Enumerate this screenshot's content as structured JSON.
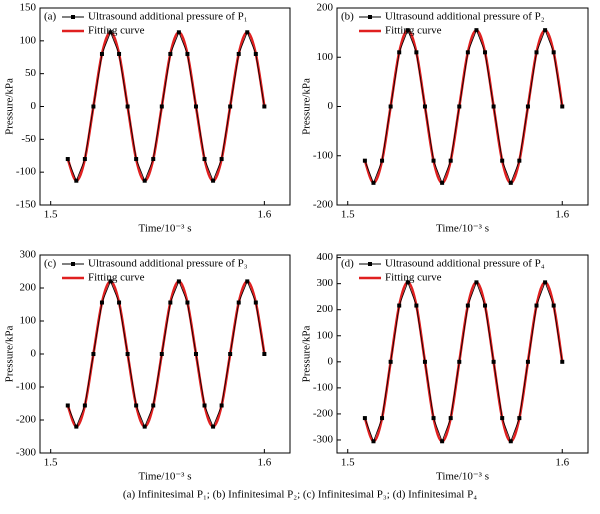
{
  "chart_data": [
    {
      "type": "line",
      "label": "(a)",
      "xlabel": "Time/10⁻³ s",
      "ylabel": "Pressure/kPa",
      "legend": "upper left",
      "x": [
        1.508,
        1.512,
        1.516,
        1.52,
        1.524,
        1.528,
        1.532,
        1.536,
        1.54,
        1.544,
        1.548,
        1.552,
        1.556,
        1.56,
        1.564,
        1.568,
        1.572,
        1.576,
        1.58,
        1.584,
        1.588,
        1.592,
        1.596,
        1.6
      ],
      "series": [
        {
          "name": "Ultrasound additional pressure of P₁",
          "color": "#000000",
          "values": [
            -80,
            -113,
            -80,
            0,
            80,
            113,
            80,
            0,
            -80,
            -113,
            -80,
            0,
            80,
            113,
            80,
            0,
            -80,
            -113,
            -80,
            0,
            80,
            113,
            80,
            0
          ]
        },
        {
          "name": "Fitting curve",
          "color": "#e02020",
          "values": [
            -80,
            -113,
            -80,
            0,
            80,
            113,
            80,
            0,
            -80,
            -113,
            -80,
            0,
            80,
            113,
            80,
            0,
            -80,
            -113,
            -80,
            0,
            80,
            113,
            80,
            0
          ]
        }
      ],
      "xlim": [
        1.495,
        1.612
      ],
      "xticks": [
        1.5,
        1.6
      ],
      "ylim": [
        -150,
        150
      ],
      "yticks": [
        -150,
        -100,
        -50,
        0,
        50,
        100,
        150
      ]
    },
    {
      "type": "line",
      "label": "(b)",
      "xlabel": "Time/10⁻³ s",
      "ylabel": "Pressure/kPa",
      "legend": "upper left",
      "x": [
        1.508,
        1.512,
        1.516,
        1.52,
        1.524,
        1.528,
        1.532,
        1.536,
        1.54,
        1.544,
        1.548,
        1.552,
        1.556,
        1.56,
        1.564,
        1.568,
        1.572,
        1.576,
        1.58,
        1.584,
        1.588,
        1.592,
        1.596,
        1.6
      ],
      "series": [
        {
          "name": "Ultrasound additional pressure of P₂",
          "color": "#000000",
          "values": [
            -110,
            -155,
            -110,
            0,
            110,
            155,
            110,
            0,
            -110,
            -155,
            -110,
            0,
            110,
            155,
            110,
            0,
            -110,
            -155,
            -110,
            0,
            110,
            155,
            110,
            0
          ]
        },
        {
          "name": "Fitting curve",
          "color": "#e02020",
          "values": [
            -110,
            -155,
            -110,
            0,
            110,
            155,
            110,
            0,
            -110,
            -155,
            -110,
            0,
            110,
            155,
            110,
            0,
            -110,
            -155,
            -110,
            0,
            110,
            155,
            110,
            0
          ]
        }
      ],
      "xlim": [
        1.495,
        1.612
      ],
      "xticks": [
        1.5,
        1.6
      ],
      "ylim": [
        -200,
        200
      ],
      "yticks": [
        -200,
        -100,
        0,
        100,
        200
      ]
    },
    {
      "type": "line",
      "label": "(c)",
      "xlabel": "Time/10⁻³ s",
      "ylabel": "Pressure/kPa",
      "legend": "upper left",
      "x": [
        1.508,
        1.512,
        1.516,
        1.52,
        1.524,
        1.528,
        1.532,
        1.536,
        1.54,
        1.544,
        1.548,
        1.552,
        1.556,
        1.56,
        1.564,
        1.568,
        1.572,
        1.576,
        1.58,
        1.584,
        1.588,
        1.592,
        1.596,
        1.6
      ],
      "series": [
        {
          "name": "Ultrasound additional pressure of P₃",
          "color": "#000000",
          "values": [
            -156,
            -220,
            -156,
            0,
            156,
            220,
            156,
            0,
            -156,
            -220,
            -156,
            0,
            156,
            220,
            156,
            0,
            -156,
            -220,
            -156,
            0,
            156,
            220,
            156,
            0
          ]
        },
        {
          "name": "Fitting curve",
          "color": "#e02020",
          "values": [
            -156,
            -220,
            -156,
            0,
            156,
            220,
            156,
            0,
            -156,
            -220,
            -156,
            0,
            156,
            220,
            156,
            0,
            -156,
            -220,
            -156,
            0,
            156,
            220,
            156,
            0
          ]
        }
      ],
      "xlim": [
        1.495,
        1.612
      ],
      "xticks": [
        1.5,
        1.6
      ],
      "ylim": [
        -300,
        300
      ],
      "yticks": [
        -300,
        -200,
        -100,
        0,
        100,
        200,
        300
      ]
    },
    {
      "type": "line",
      "label": "(d)",
      "xlabel": "Time/10⁻³ s",
      "ylabel": "Pressure/kPa",
      "legend": "upper left",
      "x": [
        1.508,
        1.512,
        1.516,
        1.52,
        1.524,
        1.528,
        1.532,
        1.536,
        1.54,
        1.544,
        1.548,
        1.552,
        1.556,
        1.56,
        1.564,
        1.568,
        1.572,
        1.576,
        1.58,
        1.584,
        1.588,
        1.592,
        1.596,
        1.6
      ],
      "series": [
        {
          "name": "Ultrasound additional pressure of P₄",
          "color": "#000000",
          "values": [
            -216,
            -305,
            -216,
            0,
            216,
            305,
            216,
            0,
            -216,
            -305,
            -216,
            0,
            216,
            305,
            216,
            0,
            -216,
            -305,
            -216,
            0,
            216,
            305,
            216,
            0
          ]
        },
        {
          "name": "Fitting curve",
          "color": "#e02020",
          "values": [
            -216,
            -305,
            -216,
            0,
            216,
            305,
            216,
            0,
            -216,
            -305,
            -216,
            0,
            216,
            305,
            216,
            0,
            -216,
            -305,
            -216,
            0,
            216,
            305,
            216,
            0
          ]
        }
      ],
      "xlim": [
        1.495,
        1.612
      ],
      "xticks": [
        1.5,
        1.6
      ],
      "ylim": [
        -350,
        410
      ],
      "yticks": [
        -300,
        -200,
        -100,
        0,
        100,
        200,
        300,
        400
      ]
    }
  ],
  "caption": "(a)  Infinitesimal  P₁;  (b)  Infinitesimal  P₂; (c) Infinitesimal P₃; (d) Infinitesimal P₄"
}
